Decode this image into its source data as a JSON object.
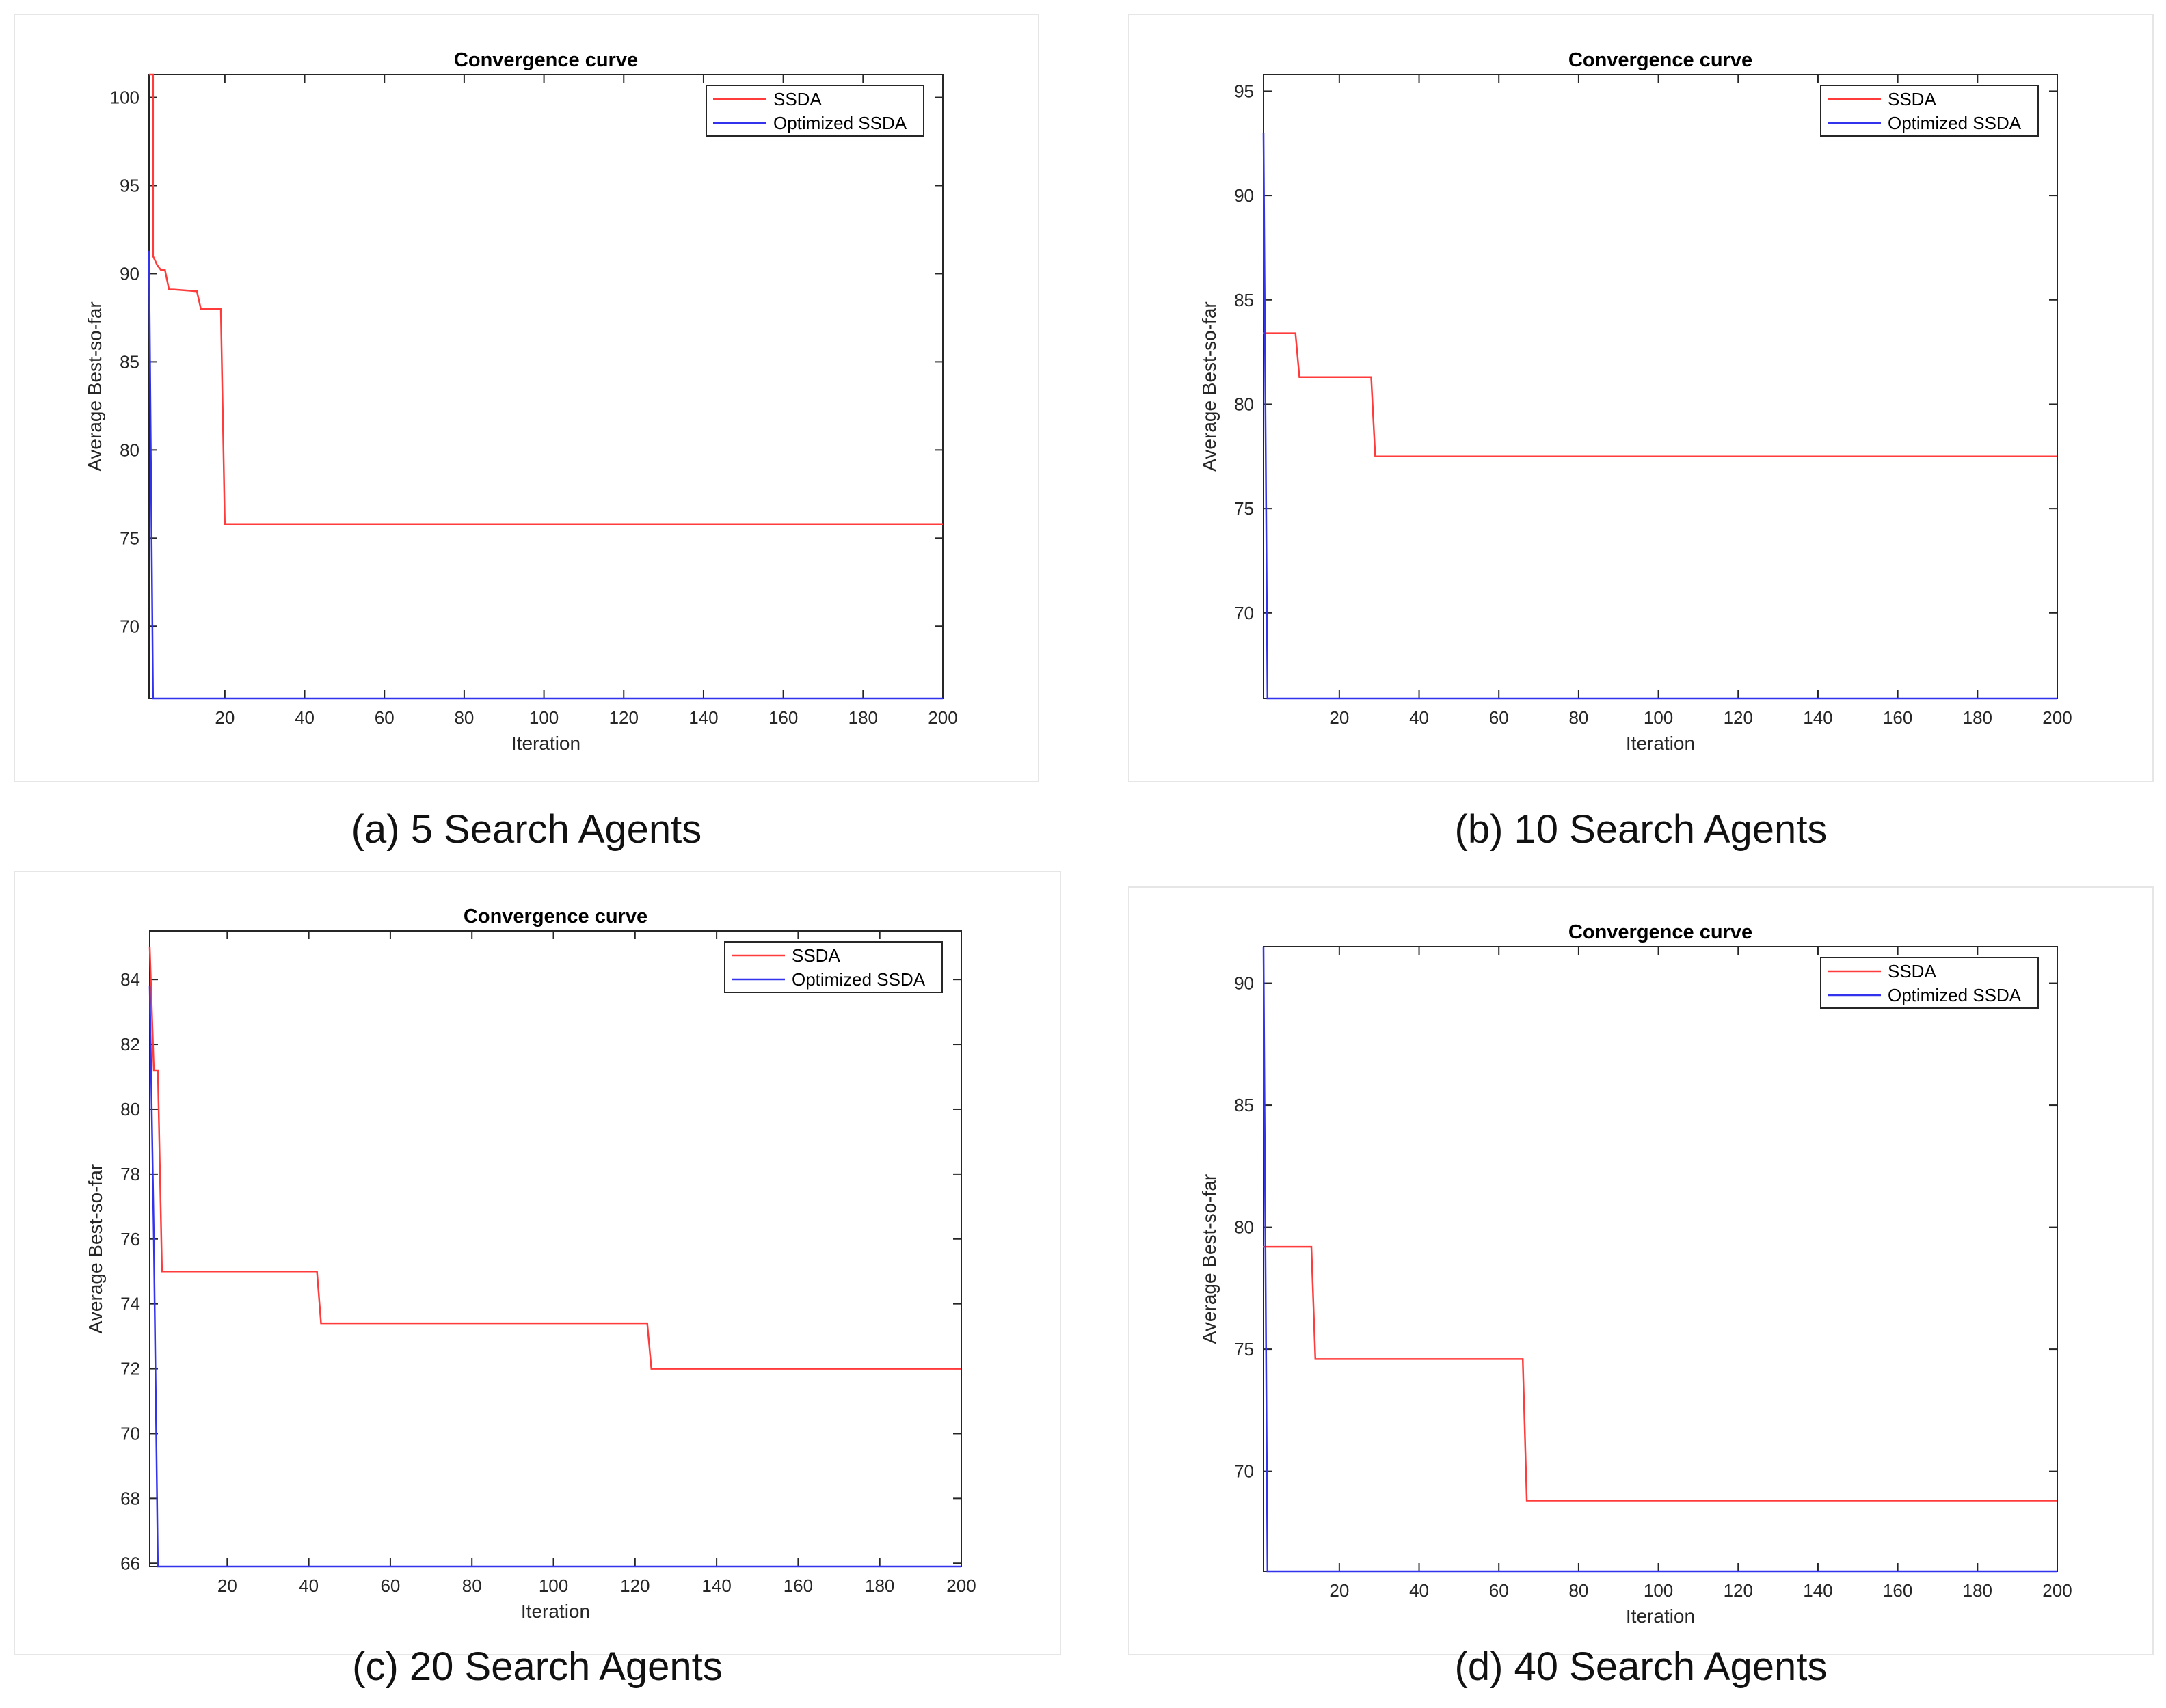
{
  "colors": {
    "ssda": "#ff3b3b",
    "optimized": "#3333ee",
    "axis": "#262626",
    "panel_border": "#e6e6e6"
  },
  "chart_data": [
    {
      "type": "line",
      "title": "Convergence curve",
      "xlabel": "Iteration",
      "ylabel": "Average Best-so-far",
      "caption": "(a) 5 Search Agents",
      "xlim": [
        1,
        200
      ],
      "ylim": [
        65.9,
        101.3
      ],
      "xticks": [
        20,
        40,
        60,
        80,
        100,
        120,
        140,
        160,
        180,
        200
      ],
      "yticks": [
        70,
        75,
        80,
        85,
        90,
        95,
        100
      ],
      "legend": {
        "position": "top-right",
        "entries": [
          "SSDA",
          "Optimized SSDA"
        ]
      },
      "series": [
        {
          "name": "SSDA",
          "color": "#ff3b3b",
          "x": [
            1,
            2,
            2,
            3,
            4,
            5,
            6,
            7,
            13,
            14,
            15,
            19,
            20,
            200
          ],
          "y": [
            101.3,
            101.3,
            91.0,
            90.5,
            90.2,
            90.2,
            89.1,
            89.1,
            89.0,
            88.0,
            88.0,
            88.0,
            75.8,
            75.8
          ]
        },
        {
          "name": "Optimized SSDA",
          "color": "#3333ee",
          "x": [
            1,
            2,
            2,
            200
          ],
          "y": [
            91.3,
            65.9,
            65.9,
            65.9
          ]
        }
      ]
    },
    {
      "type": "line",
      "title": "Convergence curve",
      "xlabel": "Iteration",
      "ylabel": "Average Best-so-far",
      "caption": "(b) 10 Search Agents",
      "xlim": [
        1,
        200
      ],
      "ylim": [
        65.9,
        95.8
      ],
      "xticks": [
        20,
        40,
        60,
        80,
        100,
        120,
        140,
        160,
        180,
        200
      ],
      "yticks": [
        70,
        75,
        80,
        85,
        90,
        95
      ],
      "legend": {
        "position": "top-right",
        "entries": [
          "SSDA",
          "Optimized SSDA"
        ]
      },
      "series": [
        {
          "name": "SSDA",
          "color": "#ff3b3b",
          "x": [
            1,
            9,
            10,
            28,
            29,
            200
          ],
          "y": [
            83.4,
            83.4,
            81.3,
            81.3,
            77.5,
            77.5
          ]
        },
        {
          "name": "Optimized SSDA",
          "color": "#3333ee",
          "x": [
            1,
            2,
            200
          ],
          "y": [
            93.0,
            65.9,
            65.9
          ]
        }
      ]
    },
    {
      "type": "line",
      "title": "Convergence curve",
      "xlabel": "Iteration",
      "ylabel": "Average Best-so-far",
      "caption": "(c) 20 Search Agents",
      "xlim": [
        1,
        200
      ],
      "ylim": [
        65.9,
        85.5
      ],
      "xticks": [
        20,
        40,
        60,
        80,
        100,
        120,
        140,
        160,
        180,
        200
      ],
      "yticks": [
        66,
        68,
        70,
        72,
        74,
        76,
        78,
        80,
        82,
        84
      ],
      "legend": {
        "position": "top-right",
        "entries": [
          "SSDA",
          "Optimized SSDA"
        ]
      },
      "series": [
        {
          "name": "SSDA",
          "color": "#ff3b3b",
          "x": [
            1,
            2,
            3,
            4,
            42,
            43,
            123,
            124,
            200
          ],
          "y": [
            85.0,
            81.2,
            81.2,
            75.0,
            75.0,
            73.4,
            73.4,
            72.0,
            72.0
          ]
        },
        {
          "name": "Optimized SSDA",
          "color": "#3333ee",
          "x": [
            1,
            2,
            3,
            200
          ],
          "y": [
            83.8,
            76.0,
            65.9,
            65.9
          ]
        }
      ]
    },
    {
      "type": "line",
      "title": "Convergence curve",
      "xlabel": "Iteration",
      "ylabel": "Average Best-so-far",
      "caption": "(d) 40 Search Agents",
      "xlim": [
        1,
        200
      ],
      "ylim": [
        65.9,
        91.5
      ],
      "xticks": [
        20,
        40,
        60,
        80,
        100,
        120,
        140,
        160,
        180,
        200
      ],
      "yticks": [
        70,
        75,
        80,
        85,
        90
      ],
      "legend": {
        "position": "top-right",
        "entries": [
          "SSDA",
          "Optimized SSDA"
        ]
      },
      "series": [
        {
          "name": "SSDA",
          "color": "#ff3b3b",
          "x": [
            1,
            13,
            14,
            66,
            67,
            200
          ],
          "y": [
            79.2,
            79.2,
            74.6,
            74.6,
            68.8,
            68.8
          ]
        },
        {
          "name": "Optimized SSDA",
          "color": "#3333ee",
          "x": [
            1,
            2,
            200
          ],
          "y": [
            91.5,
            65.9,
            65.9
          ]
        }
      ]
    }
  ]
}
